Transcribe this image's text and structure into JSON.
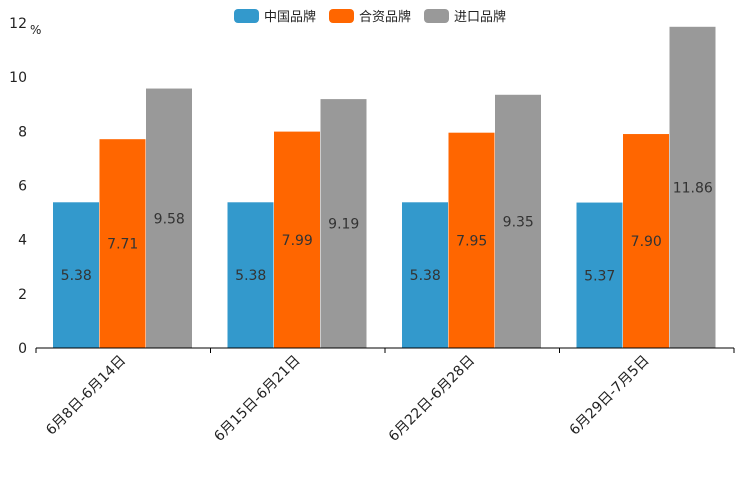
{
  "chart_data": {
    "type": "bar",
    "title": "",
    "xlabel": "",
    "ylabel": "%",
    "ylim": [
      0,
      12
    ],
    "yticks": [
      0,
      2,
      4,
      6,
      8,
      10,
      12
    ],
    "grid": false,
    "legend_position": "top",
    "categories": [
      "6月8日-6月14日",
      "6月15日-6月21日",
      "6月22日-6月28日",
      "6月29日-7月5日"
    ],
    "series": [
      {
        "name": "中国品牌",
        "color": "#3399cc",
        "values": [
          5.38,
          5.38,
          5.38,
          5.37
        ],
        "labels": [
          "5.38",
          "5.38",
          "5.38",
          "5.37"
        ]
      },
      {
        "name": "合资品牌",
        "color": "#ff6600",
        "values": [
          7.71,
          7.99,
          7.95,
          7.9
        ],
        "labels": [
          "7.71",
          "7.99",
          "7.95",
          "7.90"
        ]
      },
      {
        "name": "进口品牌",
        "color": "#999999",
        "values": [
          9.58,
          9.19,
          9.35,
          11.86
        ],
        "labels": [
          "9.58",
          "9.19",
          "9.35",
          "11.86"
        ]
      }
    ]
  }
}
